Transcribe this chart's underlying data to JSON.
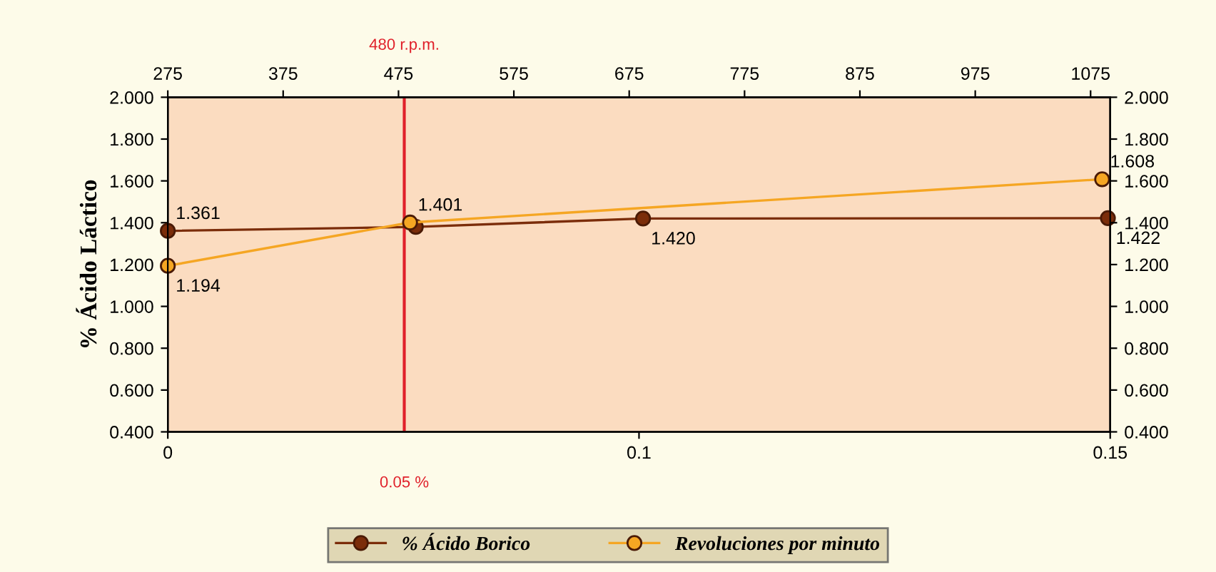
{
  "chart_data": {
    "type": "line",
    "ylabel": "% Ácido Láctico",
    "categories": [
      "0",
      "0.1",
      "0.15"
    ],
    "x2lim": [
      275,
      1092
    ],
    "x2ticks": [
      275,
      375,
      475,
      575,
      675,
      775,
      875,
      975,
      1075
    ],
    "ylim": [
      0.4,
      2.0
    ],
    "yticks": [
      {
        "value": 0.4,
        "label": "0.400"
      },
      {
        "value": 0.6,
        "label": "0.600"
      },
      {
        "value": 0.8,
        "label": "0.800"
      },
      {
        "value": 1.0,
        "label": "1.000"
      },
      {
        "value": 1.2,
        "label": "1.200"
      },
      {
        "value": 1.4,
        "label": "1.400"
      },
      {
        "value": 1.6,
        "label": "1.600"
      },
      {
        "value": 1.8,
        "label": "1.800"
      },
      {
        "value": 2.0,
        "label": "2.000"
      }
    ],
    "y2lim": [
      0.4,
      2.0
    ],
    "y2ticks": [
      {
        "value": 0.4,
        "label": "0.400"
      },
      {
        "value": 0.6,
        "label": "0.600"
      },
      {
        "value": 0.8,
        "label": "0.800"
      },
      {
        "value": 1.0,
        "label": "1.000"
      },
      {
        "value": 1.2,
        "label": "1.200"
      },
      {
        "value": 1.4,
        "label": "1.400"
      },
      {
        "value": 1.6,
        "label": "1.600"
      },
      {
        "value": 1.8,
        "label": "1.800"
      },
      {
        "value": 2.0,
        "label": "2.000"
      }
    ],
    "series": [
      {
        "name": "% Ácido Borico",
        "color": "#7b2d0a",
        "axis": "x2",
        "x": [
          275,
          490,
          687,
          1090
        ],
        "values": [
          1.361,
          1.38,
          1.42,
          1.422
        ],
        "value_labels": [
          "1.361",
          null,
          "1.420",
          "1.422"
        ]
      },
      {
        "name": "Revoluciones por minuto",
        "color": "#f5a623",
        "axis": "x2",
        "x": [
          275,
          485,
          1085
        ],
        "values": [
          1.194,
          1.401,
          1.608
        ],
        "value_labels": [
          "1.194",
          "1.401",
          "1.608"
        ]
      }
    ],
    "ref_lines": [
      {
        "axis": "x2",
        "value": 480,
        "label": "480 r.p.m.",
        "color": "#e0202a"
      }
    ],
    "annotations": [
      "0.05 %"
    ],
    "marker": "circle",
    "grid": false,
    "legend": "bottom"
  }
}
